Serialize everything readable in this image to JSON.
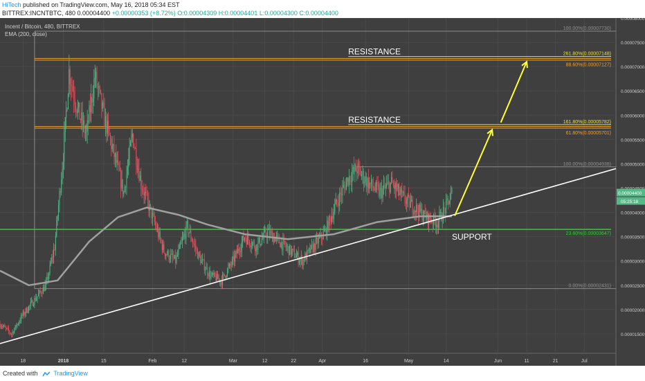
{
  "header": {
    "author": "HiTech",
    "published_text": "published on TradingView.com, May 16, 2018 05:34 EST",
    "symbol_line": "BITTREX:INCNTBTC, 480",
    "price": "0.00004400",
    "change": "+0.00000353 (+8.72%)",
    "ohlc": "O:0.00004309 H:0.00004401 L:0.00004300 C:0.00004400"
  },
  "legend": {
    "pair": "Incent / Bitcoin, 480, BITTREX",
    "ema": "EMA (200, close)"
  },
  "footer": {
    "created_with": "Created with",
    "brand": "TradingView"
  },
  "colors": {
    "background": "#3f3f3f",
    "up_candle": "#53b987",
    "down_candle": "#eb4d5c",
    "ema": "#a0a0a0",
    "trendline": "#ffffff",
    "arrow": "#ffff33",
    "resistance": "#f0a030",
    "support": "#33cc33"
  },
  "chart_data": {
    "type": "candlestick",
    "symbol": "BITTREX:INCNTBTC",
    "interval": "480",
    "ylim": [
      1.1e-05,
      8e-05
    ],
    "x_range": [
      "2017-12-10",
      "2018-07-12"
    ],
    "x_ticks": [
      {
        "label": "18",
        "date": "2017-12-18"
      },
      {
        "label": "2018",
        "date": "2018-01-01"
      },
      {
        "label": "15",
        "date": "2018-01-15"
      },
      {
        "label": "Feb",
        "date": "2018-02-01"
      },
      {
        "label": "12",
        "date": "2018-02-12"
      },
      {
        "label": "Mar",
        "date": "2018-03-01"
      },
      {
        "label": "12",
        "date": "2018-03-12"
      },
      {
        "label": "22",
        "date": "2018-03-22"
      },
      {
        "label": "Apr",
        "date": "2018-04-01"
      },
      {
        "label": "16",
        "date": "2018-04-16"
      },
      {
        "label": "May",
        "date": "2018-05-01"
      },
      {
        "label": "14",
        "date": "2018-05-14"
      },
      {
        "label": "Jun",
        "date": "2018-06-01"
      },
      {
        "label": "11",
        "date": "2018-06-11"
      },
      {
        "label": "21",
        "date": "2018-06-21"
      },
      {
        "label": "Jul",
        "date": "2018-07-01"
      }
    ],
    "y_ticks": [
      "0.00008000",
      "0.00007500",
      "0.00007000",
      "0.00006500",
      "0.00006000",
      "0.00005500",
      "0.00005000",
      "0.00004500",
      "0.00004000",
      "0.00003500",
      "0.00003000",
      "0.00002500",
      "0.00002000",
      "0.00001500"
    ],
    "last_price": "0.00004400",
    "countdown": "05:25:18",
    "price_path": [
      [
        "2017-12-10",
        1.7e-05
      ],
      [
        "2017-12-14",
        1.5e-05
      ],
      [
        "2017-12-18",
        1.9e-05
      ],
      [
        "2017-12-22",
        2.2e-05
      ],
      [
        "2017-12-26",
        2.5e-05
      ],
      [
        "2017-12-29",
        3.3e-05
      ],
      [
        "2018-01-01",
        5.2e-05
      ],
      [
        "2018-01-03",
        6.9e-05
      ],
      [
        "2018-01-06",
        6.1e-05
      ],
      [
        "2018-01-09",
        5.6e-05
      ],
      [
        "2018-01-12",
        6.8e-05
      ],
      [
        "2018-01-15",
        6e-05
      ],
      [
        "2018-01-19",
        5.1e-05
      ],
      [
        "2018-01-22",
        4.4e-05
      ],
      [
        "2018-01-25",
        5.6e-05
      ],
      [
        "2018-01-28",
        4.6e-05
      ],
      [
        "2018-02-01",
        3.9e-05
      ],
      [
        "2018-02-05",
        3.2e-05
      ],
      [
        "2018-02-09",
        3e-05
      ],
      [
        "2018-02-13",
        3.7e-05
      ],
      [
        "2018-02-17",
        3.1e-05
      ],
      [
        "2018-02-21",
        2.7e-05
      ],
      [
        "2018-02-25",
        2.6e-05
      ],
      [
        "2018-03-01",
        3e-05
      ],
      [
        "2018-03-05",
        3.5e-05
      ],
      [
        "2018-03-09",
        3.3e-05
      ],
      [
        "2018-03-13",
        3.6e-05
      ],
      [
        "2018-03-17",
        3.4e-05
      ],
      [
        "2018-03-21",
        3.2e-05
      ],
      [
        "2018-03-25",
        3e-05
      ],
      [
        "2018-03-29",
        3.3e-05
      ],
      [
        "2018-04-02",
        3.6e-05
      ],
      [
        "2018-04-06",
        4.2e-05
      ],
      [
        "2018-04-10",
        4.7e-05
      ],
      [
        "2018-04-13",
        4.9e-05
      ],
      [
        "2018-04-17",
        4.6e-05
      ],
      [
        "2018-04-21",
        4.4e-05
      ],
      [
        "2018-04-25",
        4.6e-05
      ],
      [
        "2018-04-29",
        4.3e-05
      ],
      [
        "2018-05-03",
        4.1e-05
      ],
      [
        "2018-05-07",
        3.9e-05
      ],
      [
        "2018-05-11",
        3.8e-05
      ],
      [
        "2018-05-14",
        4.1e-05
      ],
      [
        "2018-05-16",
        4.4e-05
      ]
    ],
    "ema_200": [
      [
        "2017-12-10",
        2.8e-05
      ],
      [
        "2017-12-20",
        2.5e-05
      ],
      [
        "2017-12-30",
        2.6e-05
      ],
      [
        "2018-01-10",
        3.4e-05
      ],
      [
        "2018-01-20",
        3.9e-05
      ],
      [
        "2018-01-30",
        4.1e-05
      ],
      [
        "2018-02-10",
        3.95e-05
      ],
      [
        "2018-02-20",
        3.75e-05
      ],
      [
        "2018-03-05",
        3.55e-05
      ],
      [
        "2018-03-20",
        3.45e-05
      ],
      [
        "2018-04-05",
        3.55e-05
      ],
      [
        "2018-04-20",
        3.8e-05
      ],
      [
        "2018-05-05",
        3.92e-05
      ],
      [
        "2018-05-16",
        3.92e-05
      ]
    ],
    "fibonacci": [
      {
        "label": "100.00%(0.00007730)",
        "value": 7.73e-05,
        "from": "2017-12-22",
        "to": "2018-07-12"
      },
      {
        "label": "0.00%(0.00002431)",
        "value": 2.431e-05,
        "from": "2017-12-22",
        "to": "2018-07-12"
      },
      {
        "label": "100.00%(0.00004938)",
        "value": 4.938e-05,
        "from": "2018-04-13",
        "to": "2018-07-12"
      }
    ],
    "resistance_levels": [
      {
        "label": "RESISTANCE",
        "value": 7.15e-05,
        "ratio_labels": [
          "261.80%(0.00007148)",
          "88.60%(0.00007127)"
        ]
      },
      {
        "label": "RESISTANCE",
        "value": 5.75e-05,
        "ratio_labels": [
          "161.80%(0.00005782)",
          "61.80%(0.00005701)"
        ]
      }
    ],
    "support_level": {
      "label": "SUPPORT",
      "value": 3.65e-05,
      "ratio_label": "23.60%(0.00003647)"
    },
    "trendline": [
      [
        "2017-12-10",
        1.3e-05
      ],
      [
        "2018-07-12",
        4.9e-05
      ]
    ],
    "projection_arrows": [
      [
        [
          "2018-05-17",
          3.93e-05
        ],
        [
          "2018-05-30",
          5.7e-05
        ]
      ],
      [
        [
          "2018-06-02",
          5.85e-05
        ],
        [
          "2018-06-11",
          7.1e-05
        ]
      ]
    ]
  }
}
